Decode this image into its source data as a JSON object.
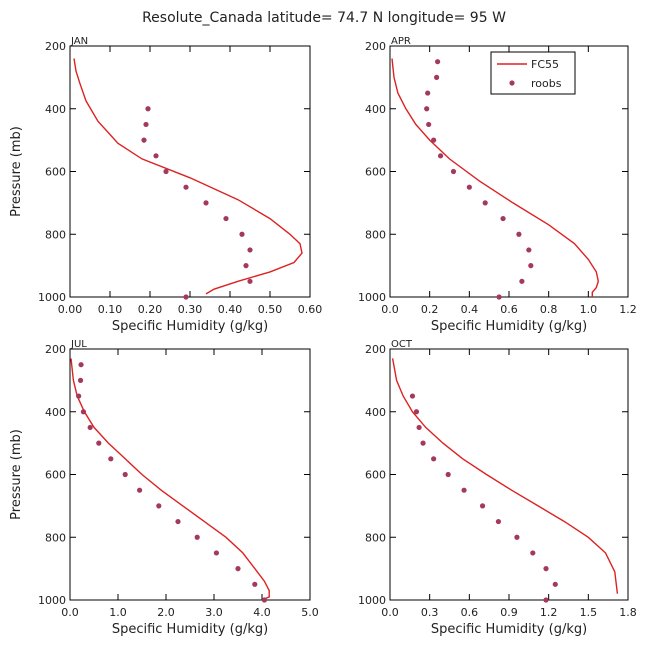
{
  "title": "Resolute_Canada   latitude= 74.7 N longitude= 95 W",
  "legend": {
    "model_label": "FC55",
    "obs_label": "roobs"
  },
  "colors": {
    "model": "#dd2222",
    "obs": "#a33a5e",
    "axis": "#000000"
  },
  "chart_data": [
    {
      "type": "line",
      "panel": "JAN",
      "xlabel": "Specific Humidity (g/kg)",
      "ylabel": "Pressure (mb)",
      "xlim": [
        0,
        0.6
      ],
      "ylim": [
        1000,
        200
      ],
      "xticks": [
        0,
        0.1,
        0.2,
        0.3,
        0.4,
        0.5,
        0.6
      ],
      "xtick_labels": [
        "0.00",
        "0.10",
        "0.20",
        "0.30",
        "0.40",
        "0.50",
        "0.60"
      ],
      "yticks": [
        200,
        400,
        600,
        800,
        1000
      ],
      "ytick_labels": [
        "200",
        "400",
        "600",
        "800",
        "1000"
      ],
      "model": {
        "name": "FC55",
        "q": [
          0.01,
          0.015,
          0.025,
          0.04,
          0.07,
          0.12,
          0.18,
          0.3,
          0.42,
          0.5,
          0.55,
          0.575,
          0.58,
          0.56,
          0.5,
          0.42,
          0.36,
          0.34
        ],
        "p": [
          240,
          280,
          320,
          375,
          440,
          510,
          560,
          620,
          690,
          750,
          800,
          830,
          860,
          890,
          920,
          950,
          975,
          990
        ]
      },
      "obs": {
        "name": "roobs",
        "q": [
          0.195,
          0.19,
          0.185,
          0.215,
          0.24,
          0.29,
          0.34,
          0.39,
          0.43,
          0.45,
          0.44,
          0.45,
          0.29
        ],
        "p": [
          400,
          450,
          500,
          550,
          600,
          650,
          700,
          750,
          800,
          850,
          900,
          950,
          1000
        ]
      }
    },
    {
      "type": "line",
      "panel": "APR",
      "xlabel": "Specific Humidity (g/kg)",
      "ylabel": "",
      "xlim": [
        0,
        1.2
      ],
      "ylim": [
        1000,
        200
      ],
      "xticks": [
        0,
        0.2,
        0.4,
        0.6,
        0.8,
        1.0,
        1.2
      ],
      "xtick_labels": [
        "0.0",
        "0.2",
        "0.4",
        "0.6",
        "0.8",
        "1.0",
        "1.2"
      ],
      "yticks": [
        200,
        400,
        600,
        800,
        1000
      ],
      "ytick_labels": [
        "200",
        "400",
        "600",
        "800",
        "1000"
      ],
      "model": {
        "name": "FC55",
        "q": [
          0.01,
          0.02,
          0.04,
          0.08,
          0.13,
          0.2,
          0.3,
          0.45,
          0.62,
          0.8,
          0.93,
          1.0,
          1.04,
          1.05,
          1.04,
          1.02,
          1.02
        ],
        "p": [
          240,
          300,
          350,
          400,
          450,
          500,
          560,
          630,
          700,
          770,
          830,
          880,
          920,
          950,
          970,
          985,
          1000
        ]
      },
      "obs": {
        "name": "roobs",
        "q": [
          0.24,
          0.235,
          0.19,
          0.185,
          0.195,
          0.22,
          0.255,
          0.32,
          0.4,
          0.48,
          0.57,
          0.65,
          0.7,
          0.71,
          0.665,
          0.55
        ],
        "p": [
          250,
          300,
          350,
          400,
          450,
          500,
          550,
          600,
          650,
          700,
          750,
          800,
          850,
          900,
          950,
          1000
        ]
      }
    },
    {
      "type": "line",
      "panel": "JUL",
      "xlabel": "Specific Humidity (g/kg)",
      "ylabel": "Pressure (mb)",
      "xlim": [
        0,
        5
      ],
      "ylim": [
        1000,
        200
      ],
      "xticks": [
        0,
        1,
        2,
        3,
        4,
        5
      ],
      "xtick_labels": [
        "0.0",
        "1.0",
        "2.0",
        "3.0",
        "4.0",
        "5.0"
      ],
      "yticks": [
        200,
        400,
        600,
        800,
        1000
      ],
      "ytick_labels": [
        "200",
        "400",
        "600",
        "800",
        "1000"
      ],
      "model": {
        "name": "FC55",
        "q": [
          0.02,
          0.07,
          0.15,
          0.3,
          0.5,
          0.8,
          1.15,
          1.5,
          1.9,
          2.35,
          2.8,
          3.25,
          3.6,
          3.85,
          4.05,
          4.15,
          4.15,
          4.0
        ],
        "p": [
          230,
          300,
          350,
          400,
          450,
          500,
          550,
          600,
          650,
          700,
          750,
          800,
          850,
          900,
          940,
          970,
          990,
          1000
        ]
      },
      "obs": {
        "name": "roobs",
        "q": [
          0.23,
          0.22,
          0.18,
          0.28,
          0.42,
          0.6,
          0.85,
          1.15,
          1.45,
          1.85,
          2.25,
          2.65,
          3.05,
          3.5,
          3.85,
          4.05
        ],
        "p": [
          250,
          300,
          350,
          400,
          450,
          500,
          550,
          600,
          650,
          700,
          750,
          800,
          850,
          900,
          950,
          1000
        ]
      }
    },
    {
      "type": "line",
      "panel": "OCT",
      "xlabel": "Specific Humidity (g/kg)",
      "ylabel": "",
      "xlim": [
        0,
        1.8
      ],
      "ylim": [
        1000,
        200
      ],
      "xticks": [
        0,
        0.3,
        0.6,
        0.9,
        1.2,
        1.5,
        1.8
      ],
      "xtick_labels": [
        "0.0",
        "0.3",
        "0.6",
        "0.9",
        "1.2",
        "1.5",
        "1.8"
      ],
      "yticks": [
        200,
        400,
        600,
        800,
        1000
      ],
      "ytick_labels": [
        "200",
        "400",
        "600",
        "800",
        "1000"
      ],
      "model": {
        "name": "FC55",
        "q": [
          0.02,
          0.05,
          0.1,
          0.17,
          0.27,
          0.4,
          0.55,
          0.73,
          0.92,
          1.12,
          1.32,
          1.5,
          1.63,
          1.7,
          1.72
        ],
        "p": [
          230,
          300,
          350,
          400,
          450,
          500,
          550,
          600,
          650,
          700,
          750,
          800,
          850,
          910,
          980
        ]
      },
      "obs": {
        "name": "roobs",
        "q": [
          0.17,
          0.2,
          0.22,
          0.25,
          0.33,
          0.44,
          0.56,
          0.7,
          0.82,
          0.96,
          1.08,
          1.18,
          1.25,
          1.18
        ],
        "p": [
          350,
          400,
          450,
          500,
          550,
          600,
          650,
          700,
          750,
          800,
          850,
          900,
          950,
          1000
        ]
      }
    }
  ]
}
